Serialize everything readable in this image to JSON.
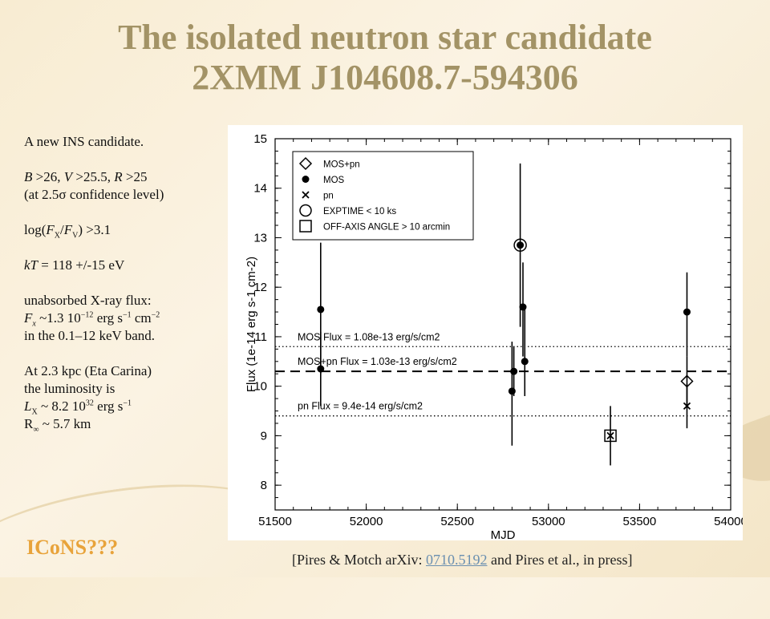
{
  "title": {
    "line1": "The isolated neutron star candidate",
    "line2": "2XMM J104608.7-594306"
  },
  "left": {
    "l1": "A new INS candidate.",
    "mag_b": "B",
    "mag_b_val": " >26, ",
    "mag_v": "V",
    "mag_v_val": " >25.5, ",
    "mag_r": "R",
    "mag_r_val": " >25",
    "l2b": "(at 2.5σ confidence level)",
    "log_pre": "log(",
    "log_f1": "F",
    "log_sub1": "X",
    "log_slash": "/",
    "log_f2": "F",
    "log_sub2": "V",
    "log_post": ") >3.1",
    "kt_k": "kT",
    "kt_val": " = 118 +/-15 eV",
    "flux_l1": "unabsorbed X-ray flux:",
    "flux_f": "F",
    "flux_sub": "x",
    "flux_val": " ~1.3 10",
    "flux_exp": "−12",
    "flux_unit1": " erg s",
    "flux_exp2": "−1",
    "flux_unit2": " cm",
    "flux_exp3": "−2",
    "flux_band": "in the 0.1–12 keV  band.",
    "dist": "At 2.3 kpc (Eta Carina)",
    "lum_l": "the luminosity is",
    "lum_L": "L",
    "lum_sub": "X",
    "lum_val": " ~ 8.2 10",
    "lum_exp": "32",
    "lum_unit": " erg s",
    "lum_exp2": "−1",
    "rad": "R",
    "rad_sub": "∞",
    "rad_val": " ~ 5.7 km"
  },
  "footer": {
    "icons": "ICoNS???",
    "cite_pre": "[Pires & Motch arXiv: ",
    "cite_link": "0710.5192",
    "cite_post": "  and Pires et al., in press]"
  },
  "chart_data": {
    "type": "scatter",
    "xlabel": "MJD",
    "ylabel": "Flux (1e-14 erg s-1 cm-2)",
    "xlim": [
      51500,
      54000
    ],
    "ylim": [
      7.5,
      15
    ],
    "xticks": [
      51500,
      52000,
      52500,
      53000,
      53500,
      54000
    ],
    "yticks": [
      8,
      9,
      10,
      11,
      12,
      13,
      14,
      15
    ],
    "legend": {
      "position": "top-left",
      "entries": [
        {
          "marker": "diamond",
          "label": "MOS+pn"
        },
        {
          "marker": "dot",
          "label": "MOS"
        },
        {
          "marker": "cross",
          "label": "pn"
        },
        {
          "marker": "circle",
          "label": "EXPTIME < 10 ks"
        },
        {
          "marker": "square",
          "label": "OFF-AXIS ANGLE > 10 arcmin"
        }
      ]
    },
    "hlines": [
      {
        "y": 10.8,
        "style": "dotted",
        "label": "MOS Flux = 1.08e-13 erg/s/cm2"
      },
      {
        "y": 10.3,
        "style": "dashed",
        "label": "MOS+pn Flux = 1.03e-13 erg/s/cm2"
      },
      {
        "y": 9.4,
        "style": "dotted",
        "label": "pn Flux = 9.4e-14 erg/s/cm2"
      }
    ],
    "points": [
      {
        "x": 51750,
        "y": 11.55,
        "lo": 10.25,
        "hi": 12.9,
        "marker": "dot"
      },
      {
        "x": 51750,
        "y": 10.35,
        "lo": 9.6,
        "hi": 11.1,
        "marker": "dot"
      },
      {
        "x": 52800,
        "y": 9.9,
        "lo": 8.8,
        "hi": 10.9,
        "marker": "dot"
      },
      {
        "x": 52810,
        "y": 10.3,
        "lo": 9.8,
        "hi": 10.8,
        "marker": "dot"
      },
      {
        "x": 52845,
        "y": 12.85,
        "lo": 11.2,
        "hi": 14.5,
        "marker": "dot-circle"
      },
      {
        "x": 52860,
        "y": 11.6,
        "lo": 10.6,
        "hi": 12.5,
        "marker": "dot"
      },
      {
        "x": 52870,
        "y": 10.5,
        "lo": 9.8,
        "hi": 11.6,
        "marker": "dot"
      },
      {
        "x": 53340,
        "y": 9.0,
        "lo": 8.4,
        "hi": 9.6,
        "marker": "cross-square"
      },
      {
        "x": 53760,
        "y": 11.5,
        "lo": 10.6,
        "hi": 12.3,
        "marker": "dot"
      },
      {
        "x": 53760,
        "y": 10.1,
        "lo": 9.6,
        "hi": 10.6,
        "marker": "diamond"
      },
      {
        "x": 53760,
        "y": 9.6,
        "lo": 9.15,
        "hi": 10.05,
        "marker": "cross"
      }
    ]
  }
}
